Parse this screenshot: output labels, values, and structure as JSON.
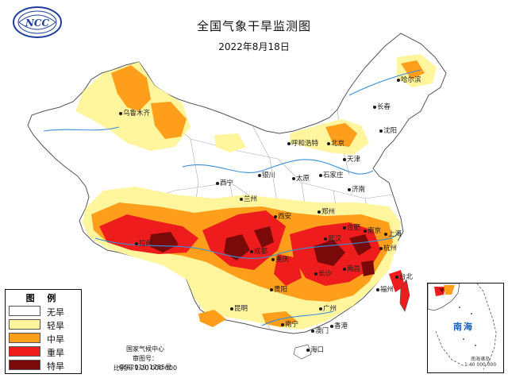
{
  "header": {
    "title": "全国气象干旱监测图",
    "date": "2022年8月18日",
    "logo_text": "NCC"
  },
  "legend": {
    "title": "图 例",
    "items": [
      {
        "label": "无旱",
        "color": "#ffffff"
      },
      {
        "label": "轻旱",
        "color": "#fff59d"
      },
      {
        "label": "中旱",
        "color": "#ff9e1a"
      },
      {
        "label": "重旱",
        "color": "#ee1c1c"
      },
      {
        "label": "特旱",
        "color": "#7a0a0a"
      }
    ]
  },
  "footer": {
    "agency": "国家气候中心",
    "map_number": "审图号：GS(2019)1785号",
    "scale": "比例尺 1:20 000 000"
  },
  "inset": {
    "label": "南海",
    "caption_line1": "南海诸岛",
    "caption_line2": "1:40 000 000"
  },
  "cities": [
    {
      "name": "哈尔滨"
    },
    {
      "name": "长春"
    },
    {
      "name": "沈阳"
    },
    {
      "name": "北京"
    },
    {
      "name": "天津"
    },
    {
      "name": "呼和浩特"
    },
    {
      "name": "乌鲁木齐"
    },
    {
      "name": "石家庄"
    },
    {
      "name": "太原"
    },
    {
      "name": "济南"
    },
    {
      "name": "银川"
    },
    {
      "name": "西宁"
    },
    {
      "name": "兰州"
    },
    {
      "name": "郑州"
    },
    {
      "name": "西安"
    },
    {
      "name": "合肥"
    },
    {
      "name": "南京"
    },
    {
      "name": "上海"
    },
    {
      "name": "武汉"
    },
    {
      "name": "杭州"
    },
    {
      "name": "成都"
    },
    {
      "name": "重庆"
    },
    {
      "name": "拉萨"
    },
    {
      "name": "长沙"
    },
    {
      "name": "南昌"
    },
    {
      "name": "福州"
    },
    {
      "name": "贵阳"
    },
    {
      "name": "台北"
    },
    {
      "name": "昆明"
    },
    {
      "name": "南宁"
    },
    {
      "name": "广州"
    },
    {
      "name": "香港"
    },
    {
      "name": "澳门"
    },
    {
      "name": "海口"
    }
  ]
}
